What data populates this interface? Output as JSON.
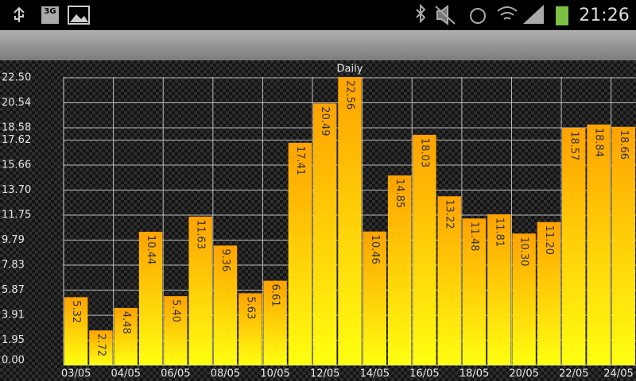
{
  "status_bar": {
    "network": "3G",
    "time": "21:26"
  },
  "chart_data": {
    "type": "bar",
    "title": "Daily",
    "categories": [
      "03/05",
      null,
      "04/05",
      null,
      "06/05",
      null,
      "08/05",
      null,
      "10/05",
      null,
      "12/05",
      null,
      "14/05",
      null,
      "16/05",
      null,
      "18/05",
      null,
      "20/05",
      null,
      "22/05",
      null,
      "24/05"
    ],
    "values": [
      5.32,
      2.72,
      4.48,
      10.44,
      5.4,
      11.63,
      9.36,
      5.63,
      6.61,
      17.41,
      20.49,
      22.56,
      10.46,
      14.85,
      18.03,
      13.22,
      11.48,
      11.81,
      10.3,
      11.2,
      18.57,
      18.84,
      18.66
    ],
    "value_labels": [
      "5.32",
      "2.72",
      "4.48",
      "10.44",
      "5.40",
      "11.63",
      "9.36",
      "5.63",
      "6.61",
      "17.41",
      "20.49",
      "22.56",
      "10.46",
      "14.85",
      "18.03",
      "13.22",
      "11.48",
      "11.81",
      "10.30",
      "11.20",
      "18.57",
      "18.84",
      "18.66"
    ],
    "gradient": [
      "#ffa200",
      "#ffff10"
    ],
    "ylim": [
      0,
      22.56
    ],
    "yticks": [
      {
        "value": 0,
        "label": "0.00"
      },
      1.95,
      3.91,
      5.87,
      7.83,
      9.79,
      11.75,
      {
        "value": 13.7,
        "label": "13.70"
      },
      15.66,
      17.62,
      18.58,
      20.54,
      {
        "value": 22.5,
        "label": "22.50"
      }
    ],
    "grid": true
  }
}
